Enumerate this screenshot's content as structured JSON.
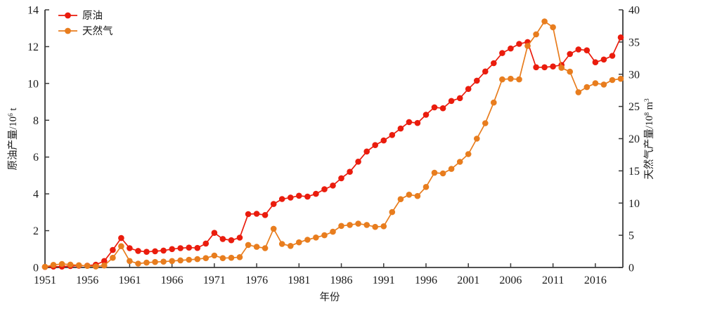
{
  "figure": {
    "background": "#ffffff",
    "axis_color": "#3a3a3a",
    "text_color": "#1a1a1a"
  },
  "chart_data": {
    "type": "line",
    "title": "",
    "legend_position": "top-left-inside",
    "grid": "off",
    "x_axis": {
      "label": "年份",
      "ticks": [
        1951,
        1956,
        1961,
        1966,
        1971,
        1976,
        1981,
        1986,
        1991,
        1996,
        2001,
        2006,
        2011,
        2016
      ],
      "range": [
        1951,
        2019
      ]
    },
    "y_axis_left": {
      "title": {
        "base": "原油产量/10",
        "sup": "6",
        "rest": " t"
      },
      "title_full": "原油产量/10⁶ t",
      "ticks": [
        0,
        2,
        4,
        6,
        8,
        10,
        12,
        14
      ],
      "range": [
        0,
        14
      ]
    },
    "y_axis_right": {
      "title": {
        "base": "天然气产量/10",
        "sup": "8",
        "rest": " m",
        "sup2": "3"
      },
      "title_full": "天然气产量/10⁸ m³",
      "ticks": [
        0,
        5,
        10,
        15,
        20,
        25,
        30,
        35,
        40
      ],
      "range": [
        0,
        40
      ]
    },
    "x": [
      1951,
      1952,
      1953,
      1954,
      1955,
      1956,
      1957,
      1958,
      1959,
      1960,
      1961,
      1962,
      1963,
      1964,
      1965,
      1966,
      1967,
      1968,
      1969,
      1970,
      1971,
      1972,
      1973,
      1974,
      1975,
      1976,
      1977,
      1978,
      1979,
      1980,
      1981,
      1982,
      1983,
      1984,
      1985,
      1986,
      1987,
      1988,
      1989,
      1990,
      1991,
      1992,
      1993,
      1994,
      1995,
      1996,
      1997,
      1998,
      1999,
      2000,
      2001,
      2002,
      2003,
      2004,
      2005,
      2006,
      2007,
      2008,
      2009,
      2010,
      2011,
      2012,
      2013,
      2014,
      2015,
      2016,
      2017,
      2018,
      2019
    ],
    "series": [
      {
        "name": "原油",
        "axis": "left",
        "unit": "10^6 t",
        "color": "#ea1c0d",
        "values": [
          0.03,
          0.05,
          0.05,
          0.08,
          0.1,
          0.1,
          0.15,
          0.35,
          0.95,
          1.6,
          1.05,
          0.9,
          0.85,
          0.88,
          0.92,
          1.0,
          1.05,
          1.08,
          1.06,
          1.3,
          1.88,
          1.55,
          1.48,
          1.62,
          2.9,
          2.92,
          2.85,
          3.45,
          3.72,
          3.8,
          3.9,
          3.85,
          4.0,
          4.25,
          4.45,
          4.85,
          5.2,
          5.75,
          6.3,
          6.65,
          6.9,
          7.2,
          7.55,
          7.9,
          7.85,
          8.3,
          8.7,
          8.65,
          9.05,
          9.2,
          9.7,
          10.15,
          10.65,
          11.1,
          11.65,
          11.9,
          12.15,
          12.25,
          10.88,
          10.88,
          10.92,
          11.0,
          11.6,
          11.85,
          11.8,
          11.15,
          11.3,
          11.5,
          12.5
        ]
      },
      {
        "name": "天然气",
        "axis": "right",
        "unit": "10^8 m^3",
        "color": "#e87d1e",
        "values": [
          0.1,
          0.4,
          0.55,
          0.45,
          0.35,
          0.25,
          0.15,
          0.3,
          1.5,
          3.3,
          1.0,
          0.6,
          0.75,
          0.85,
          0.9,
          1.0,
          1.1,
          1.2,
          1.3,
          1.45,
          1.85,
          1.45,
          1.5,
          1.6,
          3.5,
          3.2,
          3.0,
          6.0,
          3.65,
          3.35,
          3.9,
          4.3,
          4.65,
          5.0,
          5.55,
          6.45,
          6.6,
          6.8,
          6.6,
          6.3,
          6.4,
          8.6,
          10.6,
          11.3,
          11.1,
          12.5,
          14.7,
          14.6,
          15.3,
          16.4,
          17.6,
          20.0,
          22.4,
          25.6,
          29.2,
          29.3,
          29.2,
          34.4,
          36.2,
          38.2,
          37.3,
          31.0,
          30.4,
          27.2,
          28.0,
          28.6,
          28.4,
          29.1,
          29.3
        ]
      }
    ]
  }
}
